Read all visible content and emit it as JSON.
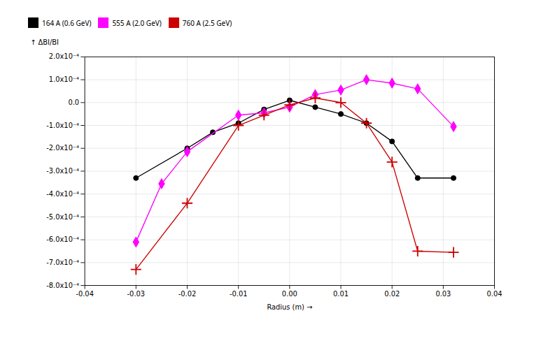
{
  "chart_data": {
    "type": "line",
    "xlabel": "Radius (m)",
    "ylabel": "ΔBI/BI",
    "series": [
      {
        "name": "164 A (0.6 GeV)",
        "color": "#000000",
        "marker": "circle",
        "x": [
          -0.03,
          -0.02,
          -0.015,
          -0.01,
          -0.005,
          0.0,
          0.005,
          0.01,
          0.015,
          0.02,
          0.025,
          0.032
        ],
        "values": [
          -0.00033,
          -0.0002,
          -0.00013,
          -9e-05,
          -3e-05,
          1e-05,
          -2e-05,
          -5e-05,
          -9e-05,
          -0.00017,
          -0.00033,
          -0.00033
        ]
      },
      {
        "name": "555 A (2.0 GeV)",
        "color": "#FF00FF",
        "marker": "diamond",
        "x": [
          -0.03,
          -0.025,
          -0.02,
          -0.01,
          -0.005,
          0.0,
          0.005,
          0.01,
          0.015,
          0.02,
          0.025,
          0.032
        ],
        "values": [
          -0.00061,
          -0.000355,
          -0.000215,
          -5.5e-05,
          -4.5e-05,
          -2e-05,
          3.5e-05,
          5.5e-05,
          0.0001,
          8.5e-05,
          6e-05,
          -0.000105
        ]
      },
      {
        "name": "760 A (2.5 GeV)",
        "color": "#CC0000",
        "marker": "plus",
        "x": [
          -0.03,
          -0.02,
          -0.01,
          -0.005,
          0.0,
          0.005,
          0.01,
          0.015,
          0.02,
          0.025,
          0.032
        ],
        "values": [
          -0.00073,
          -0.00044,
          -0.0001,
          -5.5e-05,
          -1e-05,
          2e-05,
          0.0,
          -9e-05,
          -0.00026,
          -0.00065,
          -0.000655
        ]
      }
    ],
    "xlim": [
      -0.04,
      0.04
    ],
    "xticks": [
      -0.04,
      -0.03,
      -0.02,
      -0.01,
      {
        "value": 0,
        "label": "0.00"
      },
      0.01,
      0.02,
      0.03,
      0.04
    ],
    "ylim": [
      -0.0008,
      0.0002
    ],
    "yticks": [
      {
        "value": -0.0008,
        "label": "-8.0x10⁻⁴"
      },
      {
        "value": -0.0007,
        "label": "-7.0x10⁻⁴"
      },
      {
        "value": -0.0006,
        "label": "-6.0x10⁻⁴"
      },
      {
        "value": -0.0005,
        "label": "-5.0x10⁻⁴"
      },
      {
        "value": -0.0004,
        "label": "-4.0x10⁻⁴"
      },
      {
        "value": -0.0003,
        "label": "-3.0x10⁻⁴"
      },
      {
        "value": -0.0002,
        "label": "-2.0x10⁻⁴"
      },
      {
        "value": -0.0001,
        "label": "-1.0x10⁻⁴"
      },
      {
        "value": 0,
        "label": "0.0"
      },
      {
        "value": 0.0001,
        "label": "1.0x10⁻⁴"
      },
      {
        "value": 0.0002,
        "label": "2.0x10⁻⁴"
      }
    ],
    "grid": true,
    "legend": "top"
  }
}
